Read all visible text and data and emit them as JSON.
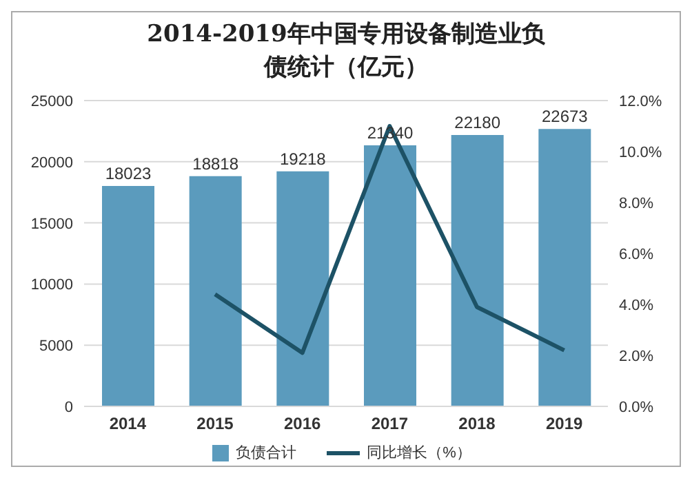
{
  "chart_data": {
    "type": "bar",
    "title": "2014-2019年中国专用设备制造业负债统计（亿元）",
    "categories": [
      "2014",
      "2015",
      "2016",
      "2017",
      "2018",
      "2019"
    ],
    "series": [
      {
        "name": "负债合计",
        "color": "#5b9bbd",
        "values": [
          18023,
          18818,
          19218,
          21340,
          22180,
          22673
        ],
        "value_labels": [
          "18023",
          "18818",
          "19218",
          "21340",
          "22180",
          "22673"
        ]
      },
      {
        "name": "同比增长（%）",
        "type": "line",
        "axis": "y2",
        "color": "#1d5266",
        "values": [
          null,
          4.4,
          2.1,
          11.0,
          3.9,
          2.2
        ]
      }
    ],
    "ylim": [
      0,
      25000
    ],
    "yticks": [
      0,
      5000,
      10000,
      15000,
      20000,
      25000
    ],
    "y2lim": [
      0,
      12
    ],
    "y2ticks": [
      {
        "value": 0,
        "label": "0.0%"
      },
      {
        "value": 2,
        "label": "2.0%"
      },
      {
        "value": 4,
        "label": "4.0%"
      },
      {
        "value": 6,
        "label": "6.0%"
      },
      {
        "value": 8,
        "label": "8.0%"
      },
      {
        "value": 10,
        "label": "10.0%"
      },
      {
        "value": 12,
        "label": "12.0%"
      }
    ],
    "grid": "y",
    "legend": "bottom",
    "marker": "none",
    "line_style": "solid"
  }
}
